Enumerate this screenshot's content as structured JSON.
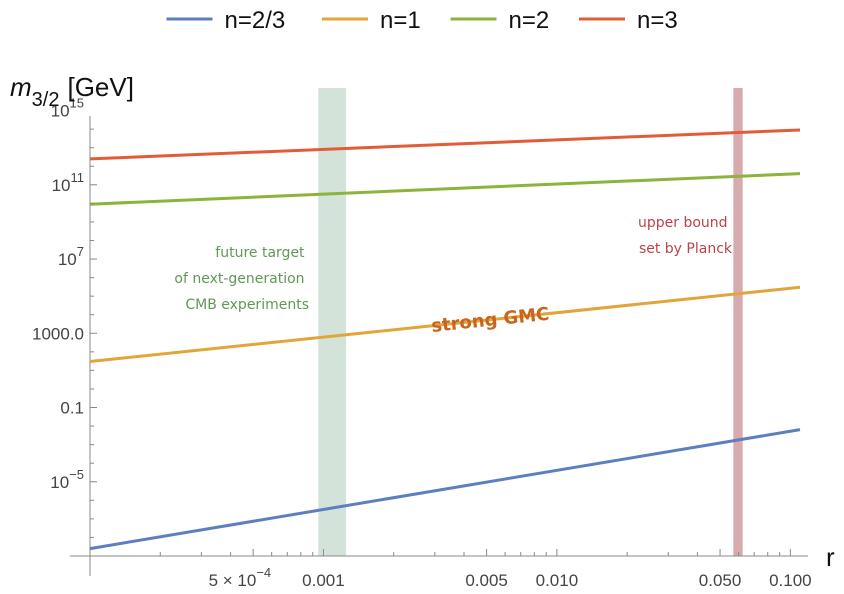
{
  "chart_data": {
    "type": "line",
    "xscale": "log",
    "yscale": "log",
    "xlim": [
      0.0001,
      0.11
    ],
    "ylim": [
      1e-09,
      1e+16
    ],
    "xlabel": "r",
    "ylabel_base": "m",
    "ylabel_sub": "3/2",
    "ylabel_unit": "[GeV]",
    "legend_position": "top",
    "grid": false,
    "x_ticks": [
      {
        "value": 0.0005,
        "label_base": "5 × 10",
        "label_exp": "−4"
      },
      {
        "value": 0.001,
        "label": "0.001"
      },
      {
        "value": 0.005,
        "label": "0.005"
      },
      {
        "value": 0.01,
        "label": "0.010"
      },
      {
        "value": 0.05,
        "label": "0.050"
      },
      {
        "value": 0.1,
        "label": "0.100"
      }
    ],
    "y_ticks": [
      {
        "value": 1e-05,
        "label_base": "10",
        "label_exp": "−5"
      },
      {
        "value": 0.1,
        "label": "0.1"
      },
      {
        "value": 1000,
        "label": "1000.0"
      },
      {
        "value": 10000000.0,
        "label_base": "10",
        "label_exp": "7"
      },
      {
        "value": 100000000000.0,
        "label_base": "10",
        "label_exp": "11"
      },
      {
        "value": 1000000000000000.0,
        "label_base": "10",
        "label_exp": "15"
      }
    ],
    "series": [
      {
        "name": "n=2/3",
        "color": "#5B7FBF",
        "x": [
          0.0001,
          0.11
        ],
        "y": [
          2.5e-09,
          0.0065
        ]
      },
      {
        "name": "n=1",
        "color": "#E2A53A",
        "x": [
          0.0001,
          0.11
        ],
        "y": [
          30,
          300000
        ]
      },
      {
        "name": "n=2",
        "color": "#8CB33C",
        "x": [
          0.0001,
          0.11
        ],
        "y": [
          9000000000.0,
          400000000000.0
        ]
      },
      {
        "name": "n=3",
        "color": "#E25C3A",
        "x": [
          0.0001,
          0.11
        ],
        "y": [
          2500000000000.0,
          90000000000000.0
        ]
      }
    ],
    "bands": [
      {
        "x_from": 0.00095,
        "x_to": 0.00125,
        "color": "#9EC2AE",
        "opacity": 0.45
      },
      {
        "x_from": 0.057,
        "x_to": 0.0625,
        "color": "#B6666C",
        "opacity": 0.55
      }
    ],
    "annotations": [
      {
        "lines": [
          "future target",
          "of next-generation",
          "CMB experiments"
        ],
        "color": "#5E9A54"
      },
      {
        "lines": [
          "upper bound",
          "set by Planck"
        ],
        "color": "#B8444A"
      },
      {
        "lines": [
          "strong GMC"
        ],
        "color": "#C8641C"
      }
    ]
  }
}
